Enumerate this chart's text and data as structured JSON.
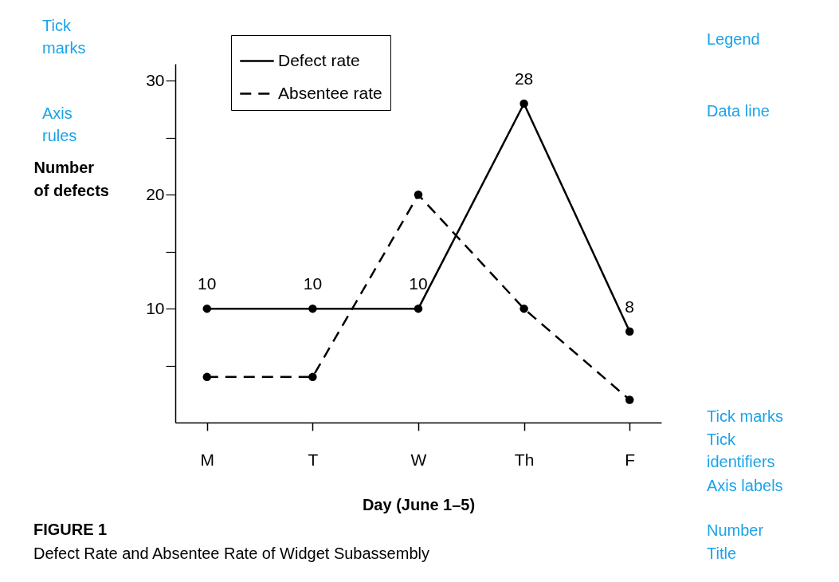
{
  "chart_data": {
    "type": "line",
    "title": "FIGURE 1",
    "subtitle": "Defect Rate and Absentee Rate of Widget Subassembly",
    "xlabel": "Day (June 1–5)",
    "ylabel": "Number of defects",
    "categories": [
      "M",
      "T",
      "W",
      "Th",
      "F"
    ],
    "series": [
      {
        "name": "Defect rate",
        "color": "#000000",
        "line_style": "solid",
        "values": [
          10,
          10,
          10,
          28,
          8
        ],
        "value_labels": [
          "10",
          "10",
          "10",
          "28",
          "8"
        ]
      },
      {
        "name": "Absentee rate",
        "color": "#000000",
        "line_style": "dashed",
        "values": [
          4,
          4,
          20,
          10,
          2
        ]
      }
    ],
    "ylim": [
      0,
      31.5
    ],
    "yticks": [
      {
        "value": 5,
        "label": null
      },
      10,
      {
        "value": 15,
        "label": null
      },
      20,
      {
        "value": 25,
        "label": null
      },
      30
    ],
    "marker": "circle",
    "legend": "top left",
    "grid": false,
    "annotations": [
      "Tick\nmarks",
      "Axis\nrules",
      "Legend",
      "Data line",
      "Tick marks",
      "Tick\nidentifiers",
      "Axis labels",
      "Number",
      "Title"
    ]
  }
}
